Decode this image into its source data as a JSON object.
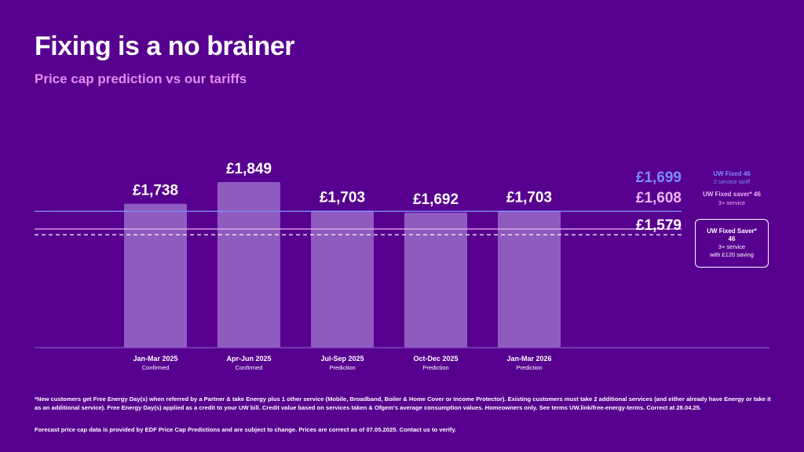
{
  "header": {
    "title": "Fixing is a no brainer",
    "subtitle": "Price cap prediction vs our tariffs"
  },
  "chart_data": {
    "type": "bar",
    "categories": [
      "Jan-Mar 2025",
      "Apr-Jun 2025",
      "Jul-Sep 2025",
      "Oct-Dec 2025",
      "Jan-Mar 2026"
    ],
    "category_status": [
      "Confirmed",
      "Confirmed",
      "Prediction",
      "Prediction",
      "Prediction"
    ],
    "values": [
      1738,
      1849,
      1703,
      1692,
      1703
    ],
    "value_labels": [
      "£1,738",
      "£1,849",
      "£1,703",
      "£1,692",
      "£1,703"
    ],
    "title": "Price cap prediction vs our tariffs",
    "xlabel": "",
    "ylabel": "",
    "ylim": [
      0,
      1849
    ],
    "grid": false,
    "bar_color": "#8f5bbf",
    "reference_lines": [
      {
        "value": 1699,
        "label": "£1,699",
        "name": "UW Fixed 46",
        "sub": "2 service tariff",
        "color": "#7c8cff",
        "style": "solid"
      },
      {
        "value": 1608,
        "label": "£1,608",
        "name": "UW Fixed saver* 46",
        "sub": "3+ service",
        "color": "#f0b3f5",
        "style": "solid"
      },
      {
        "value": 1579,
        "label": "£1,579",
        "name": "UW Fixed Saver* 46",
        "sub": "3+ service",
        "sub2": "with £120 saving",
        "color": "#ffffff",
        "style": "dashed"
      }
    ]
  },
  "footnotes": {
    "note1": "*New customers get Free Energy Day(s) when referred by a Partner & take Energy plus 1 other service (Mobile, Broadband, Boiler & Home Cover or Income Protector). Existing customers must take 2 additional services (and either already have Energy or take it as an additional service). Free Energy Day(s) applied as a credit to your UW bill. Credit value based on services taken & Ofgem's average consumption values. Homeowners only. See terms UW.link/free-energy-terms. Correct at 28.04.25.",
    "note2": "Forecast price cap data is provided by EDF Price Cap Predictions and are subject to change. Prices are correct as of 07.05.2025. Contact us to verify."
  }
}
